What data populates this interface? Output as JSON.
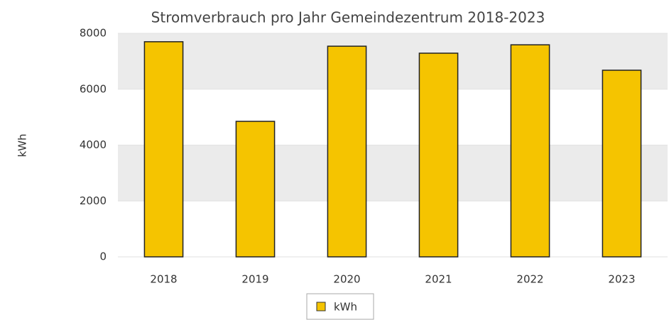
{
  "chart_data": {
    "type": "bar",
    "title": "Stromverbrauch pro Jahr Gemeindezentrum 2018-2023",
    "ylabel": "kWh",
    "categories": [
      "2018",
      "2019",
      "2020",
      "2021",
      "2022",
      "2023"
    ],
    "series": [
      {
        "name": "kWh",
        "color": "#f5c400",
        "values": [
          7700,
          4850,
          7540,
          7290,
          7590,
          6680
        ]
      }
    ],
    "ylim": [
      0,
      8000
    ],
    "yticks": [
      0,
      2000,
      4000,
      6000,
      8000
    ],
    "grid": true,
    "legend": "bottom"
  }
}
